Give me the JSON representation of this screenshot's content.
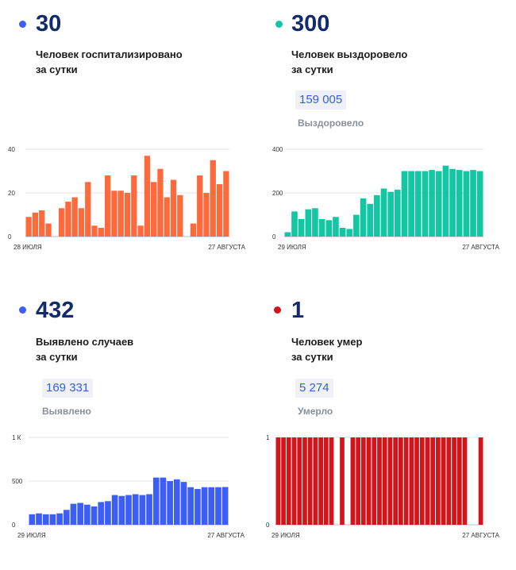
{
  "cards": [
    {
      "color": "#ff6a3d",
      "number": "30",
      "caption1": "Человек госпитализировано",
      "caption2": "за сутки",
      "total_value": "",
      "total_label": ""
    },
    {
      "color": "#14c7a4",
      "number": "300",
      "caption1": "Человек выздоровело",
      "caption2": "за сутки",
      "total_value": "159 005",
      "total_label": "Выздоровело"
    },
    {
      "color": "#3d5ef5",
      "number": "432",
      "caption1": "Выявлено случаев",
      "caption2": "за сутки",
      "total_value": "169 331",
      "total_label": "Выявлено"
    },
    {
      "color": "#d3141b",
      "number": "1",
      "caption1": "Человек умер",
      "caption2": "за сутки",
      "total_value": "5 274",
      "total_label": "Умерло"
    }
  ],
  "chart_data": [
    {
      "type": "bar",
      "color": "#ff6a3d",
      "yticks": [
        "0",
        "20",
        "40"
      ],
      "ytick_values": [
        0,
        20,
        40
      ],
      "ylim": [
        0,
        40
      ],
      "x_start": "28 ИЮЛЯ",
      "x_end": "27 АВГУСТА",
      "values": [
        9,
        11,
        12,
        6,
        null,
        13,
        16,
        18,
        13,
        25,
        5,
        4,
        28,
        21,
        21,
        20,
        28,
        5,
        37,
        25,
        31,
        18,
        26,
        19,
        null,
        6,
        28,
        20,
        35,
        24,
        30
      ]
    },
    {
      "type": "bar",
      "color": "#14c7a4",
      "yticks": [
        "0",
        "200",
        "400"
      ],
      "ytick_values": [
        0,
        200,
        400
      ],
      "ylim": [
        0,
        400
      ],
      "x_start": "29 ИЮЛЯ",
      "x_end": "27 АВГУСТА",
      "values": [
        20,
        115,
        80,
        125,
        130,
        80,
        75,
        90,
        40,
        35,
        100,
        175,
        150,
        190,
        220,
        205,
        215,
        300,
        300,
        300,
        300,
        305,
        300,
        325,
        310,
        305,
        300,
        305,
        300
      ]
    },
    {
      "type": "bar",
      "color": "#3d5ef5",
      "yticks": [
        "0",
        "500",
        "1 К"
      ],
      "ytick_values": [
        0,
        500,
        1000
      ],
      "ylim": [
        0,
        1000
      ],
      "x_start": "29 ИЮЛЯ",
      "x_end": "27 АВГУСТА",
      "values": [
        120,
        130,
        120,
        120,
        130,
        170,
        240,
        250,
        230,
        210,
        260,
        270,
        340,
        330,
        340,
        350,
        340,
        350,
        540,
        540,
        500,
        520,
        490,
        430,
        410,
        430,
        430,
        430,
        432
      ]
    },
    {
      "type": "bar",
      "color": "#d3141b",
      "yticks": [
        "0",
        "1"
      ],
      "ytick_values": [
        0,
        1
      ],
      "ylim": [
        0,
        1
      ],
      "x_start": "29 ИЮЛЯ",
      "x_end": "27 АВГУСТА",
      "values": [
        1,
        1,
        1,
        1,
        1,
        1,
        1,
        1,
        1,
        1,
        1,
        0,
        1,
        0,
        1,
        1,
        1,
        1,
        1,
        1,
        1,
        1,
        1,
        1,
        1,
        1,
        1,
        1,
        1,
        1,
        1,
        1,
        1,
        1,
        1,
        1,
        0,
        0,
        1
      ]
    }
  ]
}
